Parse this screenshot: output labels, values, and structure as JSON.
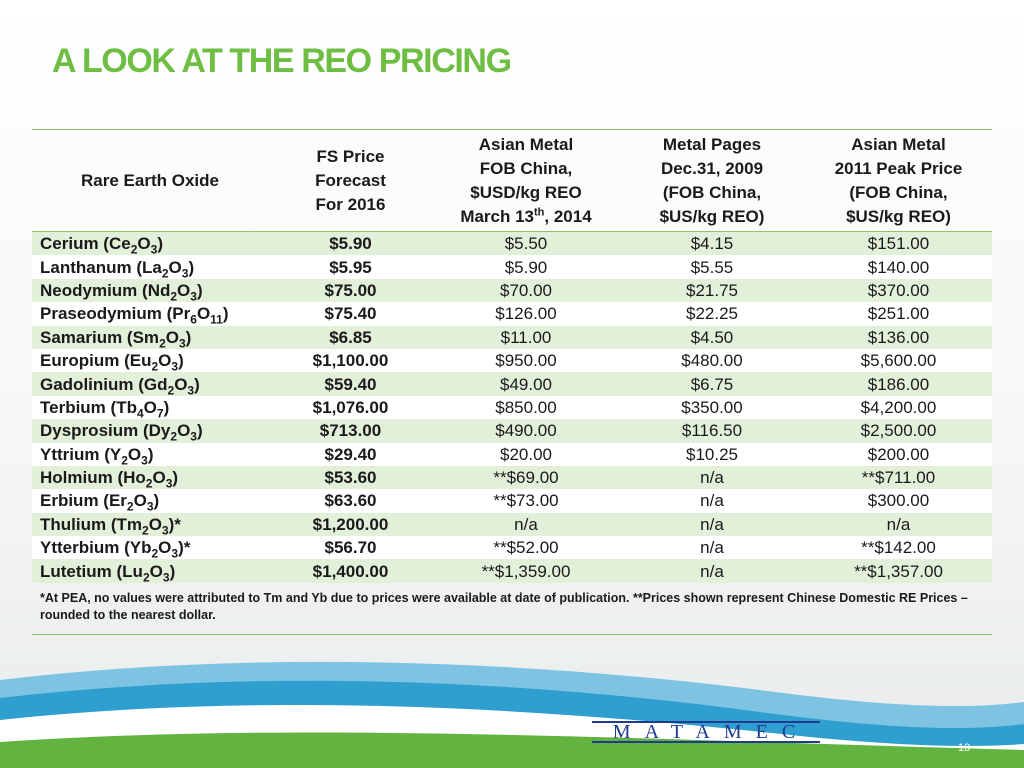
{
  "title": "A LOOK AT THE REO PRICING",
  "headers": {
    "oxide": "Rare Earth Oxide",
    "fs": [
      "FS Price",
      "Forecast",
      "For 2016"
    ],
    "asian_metal_2014": [
      "Asian Metal",
      "FOB  China,",
      "$USD/kg REO"
    ],
    "asian_metal_2014_date_pre": "March 13",
    "asian_metal_2014_date_sup": "th",
    "asian_metal_2014_date_post": ", 2014",
    "metal_pages": [
      "Metal Pages",
      "Dec.31, 2009",
      "(FOB China,",
      "$US/kg REO)"
    ],
    "asian_metal_2011": [
      "Asian Metal",
      "2011 Peak Price",
      "(FOB China,",
      "$US/kg REO)"
    ]
  },
  "rows": [
    {
      "name": "Cerium",
      "formula": [
        {
          "t": "Ce"
        },
        {
          "s": "2"
        },
        {
          "t": "O"
        },
        {
          "s": "3"
        }
      ],
      "suffix": "",
      "fs": "$5.90",
      "am2014": "$5.50",
      "mp2009": "$4.15",
      "am2011": "$151.00"
    },
    {
      "name": "Lanthanum",
      "formula": [
        {
          "t": "La"
        },
        {
          "s": "2"
        },
        {
          "t": "O"
        },
        {
          "s": "3"
        }
      ],
      "suffix": "",
      "fs": "$5.95",
      "am2014": "$5.90",
      "mp2009": "$5.55",
      "am2011": "$140.00"
    },
    {
      "name": "Neodymium",
      "formula": [
        {
          "t": "Nd"
        },
        {
          "s": "2"
        },
        {
          "t": "O"
        },
        {
          "s": "3"
        }
      ],
      "suffix": "",
      "fs": "$75.00",
      "am2014": "$70.00",
      "mp2009": "$21.75",
      "am2011": "$370.00"
    },
    {
      "name": "Praseodymium",
      "formula": [
        {
          "t": "Pr"
        },
        {
          "s": "6"
        },
        {
          "t": "O"
        },
        {
          "s": "11"
        }
      ],
      "suffix": "",
      "fs": "$75.40",
      "am2014": "$126.00",
      "mp2009": "$22.25",
      "am2011": "$251.00"
    },
    {
      "name": "Samarium",
      "formula": [
        {
          "t": "Sm"
        },
        {
          "s": "2"
        },
        {
          "t": "O"
        },
        {
          "s": "3"
        }
      ],
      "suffix": "",
      "fs": "$6.85",
      "am2014": "$11.00",
      "mp2009": "$4.50",
      "am2011": "$136.00"
    },
    {
      "name": "Europium",
      "formula": [
        {
          "t": "Eu"
        },
        {
          "s": "2"
        },
        {
          "t": "O"
        },
        {
          "s": "3"
        }
      ],
      "suffix": "",
      "fs": "$1,100.00",
      "am2014": "$950.00",
      "mp2009": "$480.00",
      "am2011": "$5,600.00"
    },
    {
      "name": "Gadolinium",
      "formula": [
        {
          "t": "Gd"
        },
        {
          "s": "2"
        },
        {
          "t": "O"
        },
        {
          "s": "3"
        }
      ],
      "suffix": "",
      "fs": "$59.40",
      "am2014": "$49.00",
      "mp2009": "$6.75",
      "am2011": "$186.00"
    },
    {
      "name": "Terbium",
      "formula": [
        {
          "t": "Tb"
        },
        {
          "s": "4"
        },
        {
          "t": "O"
        },
        {
          "s": "7"
        }
      ],
      "suffix": "",
      "fs": "$1,076.00",
      "am2014": "$850.00",
      "mp2009": "$350.00",
      "am2011": "$4,200.00"
    },
    {
      "name": "Dysprosium",
      "formula": [
        {
          "t": "Dy"
        },
        {
          "s": "2"
        },
        {
          "t": "O"
        },
        {
          "s": "3"
        }
      ],
      "suffix": "",
      "fs": "$713.00",
      "am2014": "$490.00",
      "mp2009": "$116.50",
      "am2011": "$2,500.00"
    },
    {
      "name": "Yttrium",
      "formula": [
        {
          "t": "Y"
        },
        {
          "s": "2"
        },
        {
          "t": "O"
        },
        {
          "s": "3"
        }
      ],
      "suffix": "",
      "fs": "$29.40",
      "am2014": "$20.00",
      "mp2009": "$10.25",
      "am2011": "$200.00"
    },
    {
      "name": "Holmium",
      "formula": [
        {
          "t": "Ho"
        },
        {
          "s": "2"
        },
        {
          "t": "O"
        },
        {
          "s": "3"
        }
      ],
      "suffix": "",
      "fs": "$53.60",
      "am2014": "**$69.00",
      "mp2009": "n/a",
      "am2011": "**$711.00"
    },
    {
      "name": "Erbium",
      "formula": [
        {
          "t": "Er"
        },
        {
          "s": "2"
        },
        {
          "t": "O"
        },
        {
          "s": "3"
        }
      ],
      "suffix": "",
      "fs": "$63.60",
      "am2014": "**$73.00",
      "mp2009": "n/a",
      "am2011": "$300.00"
    },
    {
      "name": "Thulium",
      "formula": [
        {
          "t": "Tm"
        },
        {
          "s": "2"
        },
        {
          "t": "O"
        },
        {
          "s": "3"
        }
      ],
      "suffix": "*",
      "fs": "$1,200.00",
      "am2014": "n/a",
      "mp2009": "n/a",
      "am2011": "n/a"
    },
    {
      "name": "Ytterbium",
      "formula": [
        {
          "t": "Yb"
        },
        {
          "s": "2"
        },
        {
          "t": "O"
        },
        {
          "s": "3"
        }
      ],
      "suffix": "*",
      "fs": "$56.70",
      "am2014": "**$52.00",
      "mp2009": "n/a",
      "am2011": "**$142.00"
    },
    {
      "name": "Lutetium",
      "formula": [
        {
          "t": "Lu"
        },
        {
          "s": "2"
        },
        {
          "t": "O"
        },
        {
          "s": "3"
        }
      ],
      "suffix": "",
      "fs": "$1,400.00",
      "am2014": "**$1,359.00",
      "mp2009": "n/a",
      "am2011": "**$1,357.00"
    }
  ],
  "footnote": "*At PEA, no values were attributed to Tm and Yb due to prices were available at date of publication. **Prices shown represent Chinese Domestic RE Prices – rounded to the nearest dollar.",
  "logo": {
    "text": "MATAMEC"
  },
  "page_number": "13",
  "colors": {
    "title": "#6fbe44",
    "row_alt": "#e2efd9",
    "rule": "#8cc86a",
    "logo": "#1f3b8f"
  }
}
